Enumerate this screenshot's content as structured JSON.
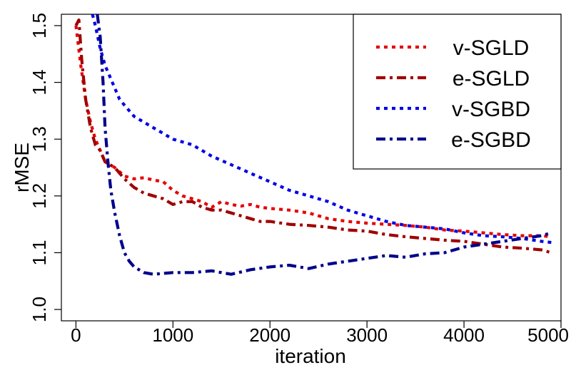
{
  "chart_data": {
    "type": "line",
    "xlabel": "iteration",
    "ylabel": "rMSE",
    "xlim": [
      -150,
      5000
    ],
    "ylim": [
      0.98,
      1.52
    ],
    "x_ticks": [
      0,
      1000,
      2000,
      3000,
      4000,
      5000
    ],
    "x_tick_labels": [
      "0",
      "1000",
      "2000",
      "3000",
      "4000",
      "5000"
    ],
    "y_ticks": [
      1.0,
      1.1,
      1.2,
      1.3,
      1.4,
      1.5
    ],
    "y_tick_labels": [
      "1.0",
      "1.1",
      "1.2",
      "1.3",
      "1.4",
      "1.5"
    ],
    "legend_position": "top-right",
    "series": [
      {
        "name": "v-SGLD",
        "color": "#e60000",
        "style": "dotted",
        "x": [
          0,
          50,
          100,
          150,
          200,
          250,
          300,
          400,
          500,
          600,
          700,
          800,
          900,
          1000,
          1100,
          1200,
          1300,
          1400,
          1500,
          1600,
          1700,
          1800,
          1900,
          2000,
          2200,
          2400,
          2600,
          2800,
          3000,
          3200,
          3400,
          3600,
          3800,
          4000,
          4200,
          4400,
          4600,
          4800,
          4900
        ],
        "y": [
          1.5,
          1.43,
          1.37,
          1.33,
          1.3,
          1.28,
          1.26,
          1.25,
          1.235,
          1.23,
          1.232,
          1.228,
          1.225,
          1.21,
          1.2,
          1.195,
          1.19,
          1.18,
          1.19,
          1.185,
          1.182,
          1.185,
          1.18,
          1.178,
          1.175,
          1.17,
          1.16,
          1.155,
          1.152,
          1.15,
          1.148,
          1.145,
          1.14,
          1.138,
          1.135,
          1.132,
          1.13,
          1.13,
          1.128
        ]
      },
      {
        "name": "e-SGLD",
        "color": "#a00000",
        "style": "dashdot",
        "x": [
          0,
          30,
          60,
          100,
          150,
          200,
          250,
          300,
          350,
          400,
          500,
          600,
          700,
          800,
          900,
          1000,
          1100,
          1200,
          1300,
          1400,
          1500,
          1600,
          1700,
          1800,
          1900,
          2000,
          2200,
          2400,
          2600,
          2800,
          3000,
          3200,
          3400,
          3600,
          3800,
          4000,
          4200,
          4400,
          4600,
          4800,
          4900
        ],
        "y": [
          1.5,
          1.51,
          1.44,
          1.37,
          1.32,
          1.29,
          1.28,
          1.26,
          1.255,
          1.25,
          1.23,
          1.215,
          1.205,
          1.2,
          1.195,
          1.185,
          1.19,
          1.19,
          1.18,
          1.175,
          1.175,
          1.17,
          1.165,
          1.16,
          1.155,
          1.155,
          1.15,
          1.148,
          1.145,
          1.14,
          1.138,
          1.132,
          1.128,
          1.125,
          1.122,
          1.12,
          1.115,
          1.11,
          1.108,
          1.105,
          1.1
        ]
      },
      {
        "name": "v-SGBD",
        "color": "#0000e6",
        "style": "dotted",
        "x": [
          170,
          200,
          250,
          300,
          350,
          400,
          450,
          500,
          600,
          700,
          800,
          900,
          1000,
          1200,
          1400,
          1600,
          1800,
          2000,
          2200,
          2400,
          2500,
          2600,
          2800,
          3000,
          3200,
          3400,
          3600,
          3800,
          4000,
          4200,
          4400,
          4600,
          4800,
          4900
        ],
        "y": [
          1.52,
          1.5,
          1.46,
          1.43,
          1.41,
          1.39,
          1.37,
          1.36,
          1.34,
          1.33,
          1.32,
          1.31,
          1.3,
          1.29,
          1.27,
          1.255,
          1.24,
          1.225,
          1.21,
          1.2,
          1.195,
          1.19,
          1.175,
          1.165,
          1.155,
          1.148,
          1.145,
          1.142,
          1.135,
          1.13,
          1.128,
          1.125,
          1.12,
          1.118
        ]
      },
      {
        "name": "e-SGBD",
        "color": "#00008b",
        "style": "dashdot",
        "x": [
          220,
          250,
          280,
          300,
          330,
          360,
          400,
          450,
          500,
          550,
          600,
          700,
          800,
          1000,
          1200,
          1400,
          1600,
          1800,
          2000,
          2200,
          2400,
          2600,
          2800,
          3000,
          3200,
          3400,
          3600,
          3800,
          4000,
          4200,
          4400,
          4600,
          4800,
          4900
        ],
        "y": [
          1.52,
          1.48,
          1.4,
          1.32,
          1.26,
          1.21,
          1.17,
          1.13,
          1.1,
          1.085,
          1.075,
          1.065,
          1.062,
          1.065,
          1.065,
          1.068,
          1.062,
          1.07,
          1.075,
          1.078,
          1.072,
          1.08,
          1.085,
          1.09,
          1.095,
          1.092,
          1.098,
          1.1,
          1.11,
          1.115,
          1.12,
          1.125,
          1.13,
          1.135
        ]
      }
    ]
  }
}
